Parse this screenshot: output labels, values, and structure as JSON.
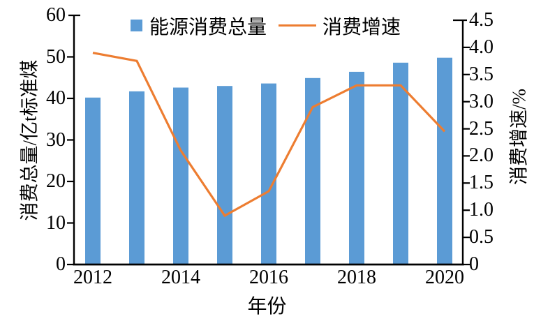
{
  "figure_kind": "dual-axis bar and line chart",
  "legend": {
    "bar_label": "能源消费总量",
    "line_label": "消费增速"
  },
  "colors": {
    "bar": "#5B9BD5",
    "line": "#ED7D31",
    "axis": "#000000",
    "background": "#FFFFFF"
  },
  "chart_data": {
    "type": "bar+line",
    "title": "",
    "categories": [
      "2012",
      "2013",
      "2014",
      "2015",
      "2016",
      "2017",
      "2018",
      "2019",
      "2020"
    ],
    "series": [
      {
        "name": "能源消费总量",
        "type": "bar",
        "axis": "left",
        "color": "#5B9BD5",
        "values": [
          40.2,
          41.7,
          42.6,
          43.0,
          43.6,
          44.9,
          46.4,
          48.6,
          49.8
        ]
      },
      {
        "name": "消费增速",
        "type": "line",
        "axis": "right",
        "color": "#ED7D31",
        "values": [
          3.9,
          3.75,
          2.1,
          0.9,
          1.35,
          2.9,
          3.3,
          3.3,
          2.45
        ]
      }
    ],
    "left_axis": {
      "label": "消费总量/亿t标准煤",
      "min": 0,
      "max": 60,
      "step": 10,
      "ticks": [
        "0",
        "10",
        "20",
        "30",
        "40",
        "50",
        "60"
      ]
    },
    "right_axis": {
      "label": "消费增速/%",
      "min": 0,
      "max": 4.5,
      "step": 0.5,
      "ticks": [
        "0",
        "0.5",
        "1.0",
        "1.5",
        "2.0",
        "2.5",
        "3.0",
        "3.5",
        "4.0",
        "4.5"
      ]
    },
    "x_axis": {
      "label": "年份",
      "tick_labels": [
        "2012",
        "2014",
        "2016",
        "2018",
        "2020"
      ]
    },
    "layout": {
      "grid": false,
      "legend_position": "top",
      "bars_sit_on_baseline": true
    }
  }
}
